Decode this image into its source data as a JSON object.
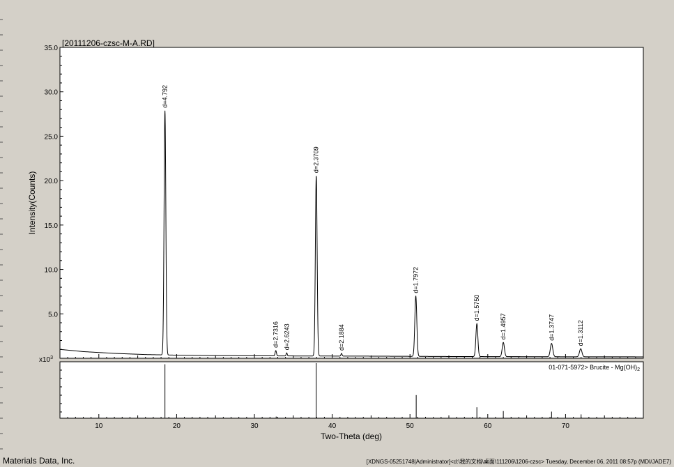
{
  "chart_data": {
    "type": "line",
    "title": "[20111206-czsc-M-A.RD]",
    "xlabel": "Two-Theta (deg)",
    "ylabel": "Intensity(Counts)",
    "y_multiplier_label": "x10",
    "y_multiplier_exp": "3",
    "xlim": [
      5,
      80
    ],
    "ylim": [
      0,
      35
    ],
    "x_ticks": [
      10,
      20,
      30,
      40,
      50,
      60,
      70
    ],
    "y_ticks": [
      5.0,
      10.0,
      15.0,
      20.0,
      25.0,
      30.0,
      35.0
    ],
    "y_tick_labels": [
      "5.0",
      "10.0",
      "15.0",
      "20.0",
      "25.0",
      "30.0",
      "35.0"
    ],
    "grid": false,
    "background": [
      [
        5,
        1.0
      ],
      [
        8,
        0.75
      ],
      [
        12,
        0.55
      ],
      [
        16,
        0.42
      ],
      [
        20,
        0.35
      ],
      [
        25,
        0.3
      ],
      [
        30,
        0.28
      ],
      [
        35,
        0.26
      ],
      [
        40,
        0.25
      ],
      [
        45,
        0.24
      ],
      [
        50,
        0.22
      ],
      [
        55,
        0.2
      ],
      [
        60,
        0.19
      ],
      [
        65,
        0.18
      ],
      [
        70,
        0.17
      ],
      [
        75,
        0.17
      ],
      [
        80,
        0.16
      ]
    ],
    "peaks": [
      {
        "x": 18.5,
        "height": 27.5,
        "width": 0.16,
        "label": "d=4.792"
      },
      {
        "x": 32.75,
        "height": 0.6,
        "width": 0.12,
        "label": "d=2.7316"
      },
      {
        "x": 34.15,
        "height": 0.35,
        "width": 0.1,
        "label": "d=2.6243"
      },
      {
        "x": 37.95,
        "height": 20.3,
        "width": 0.16,
        "label": "d=2.3709"
      },
      {
        "x": 41.2,
        "height": 0.3,
        "width": 0.1,
        "label": "d=2.1884"
      },
      {
        "x": 50.75,
        "height": 6.8,
        "width": 0.18,
        "label": "d=1.7972"
      },
      {
        "x": 58.6,
        "height": 3.7,
        "width": 0.18,
        "label": "d=1.5750"
      },
      {
        "x": 62.0,
        "height": 1.6,
        "width": 0.2,
        "label": "d=1.4957"
      },
      {
        "x": 68.2,
        "height": 1.5,
        "width": 0.22,
        "label": "d=1.3747"
      },
      {
        "x": 71.95,
        "height": 0.9,
        "width": 0.22,
        "label": "d=1.3112"
      }
    ],
    "reference": {
      "label": "01-071-5972> Brucite - Mg(OH)",
      "label_subscript": "2",
      "sticks": [
        {
          "x": 18.5,
          "rel": 0.98
        },
        {
          "x": 32.8,
          "rel": 0.03
        },
        {
          "x": 37.95,
          "rel": 1.0
        },
        {
          "x": 50.8,
          "rel": 0.42
        },
        {
          "x": 58.6,
          "rel": 0.2
        },
        {
          "x": 62.0,
          "rel": 0.13
        },
        {
          "x": 68.2,
          "rel": 0.12
        },
        {
          "x": 72.0,
          "rel": 0.07
        }
      ]
    }
  },
  "footer": {
    "company": "Materials Data, Inc.",
    "info": "[XDNGS-05251748|Administrator]<d:\\我的文档\\桌面\\111206\\1206-czsc> Tuesday, December 06, 2011 08:57p (MDI/JADE7)"
  }
}
